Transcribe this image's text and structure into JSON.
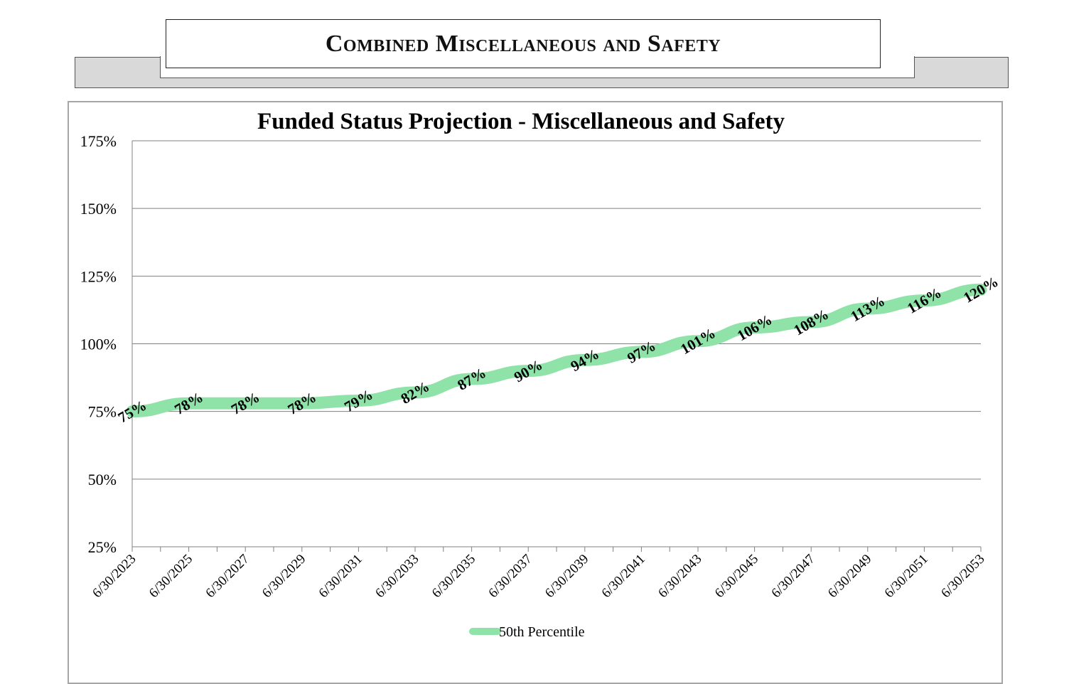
{
  "header": {
    "title": "Combined Miscellaneous and Safety"
  },
  "colors": {
    "series": "#8fe3a8",
    "grid": "#808080",
    "axis": "#808080"
  },
  "chart_data": {
    "type": "line",
    "title": "Funded Status Projection - Miscellaneous and Safety",
    "xlabel": "",
    "ylabel": "",
    "ylim": [
      25,
      175
    ],
    "yticks": [
      "25%",
      "50%",
      "75%",
      "100%",
      "125%",
      "150%",
      "175%"
    ],
    "ytick_values": [
      25,
      50,
      75,
      100,
      125,
      150,
      175
    ],
    "x_tick_labels": [
      "6/30/2023",
      "6/30/2025",
      "6/30/2027",
      "6/30/2029",
      "6/30/2031",
      "6/30/2033",
      "6/30/2035",
      "6/30/2037",
      "6/30/2039",
      "6/30/2041",
      "6/30/2043",
      "6/30/2045",
      "6/30/2047",
      "6/30/2049",
      "6/30/2051",
      "6/30/2053"
    ],
    "series": [
      {
        "name": "50th Percentile",
        "values": [
          75,
          78,
          78,
          78,
          79,
          82,
          87,
          90,
          94,
          97,
          101,
          106,
          108,
          113,
          116,
          120
        ],
        "labels": [
          "75%",
          "78%",
          "78%",
          "78%",
          "79%",
          "82%",
          "87%",
          "90%",
          "94%",
          "97%",
          "101%",
          "106%",
          "108%",
          "113%",
          "116%",
          "120%"
        ]
      }
    ],
    "legend": "bottom",
    "grid": true
  }
}
